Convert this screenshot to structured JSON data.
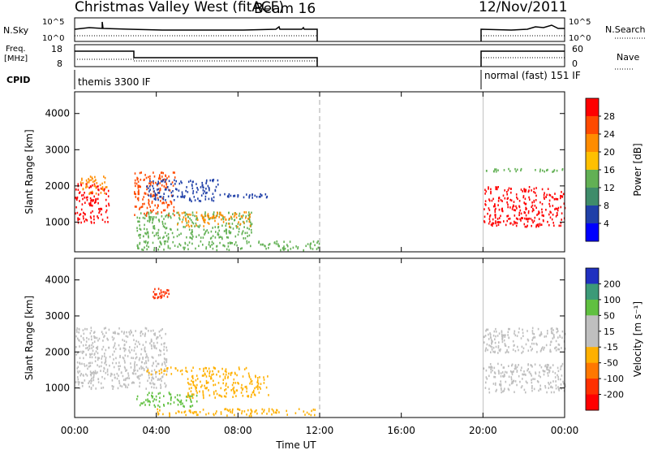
{
  "header": {
    "title": "Christmas Valley West (fitACF)",
    "beam": "Beam 16",
    "date": "12/Nov/2011"
  },
  "params": {
    "nsky_label": "N.Sky",
    "nsky_ticks": [
      "10^5",
      "10^0"
    ],
    "nsearch_label": "N.Search",
    "freq_label_1": "Freq.",
    "freq_label_2": "[MHz]",
    "freq_ticks": [
      "18",
      "8"
    ],
    "nave_label": "Nave",
    "nave_ticks": [
      "60",
      "0"
    ],
    "cpid_label": "CPID",
    "cpid_1": "themis 3300 IF",
    "cpid_2": "normal (fast) 151 IF"
  },
  "power_colorbar": {
    "label": "Power [dB]",
    "ticks": [
      "28",
      "24",
      "20",
      "16",
      "12",
      "8",
      "4"
    ],
    "colors": [
      "#ff0000",
      "#ff4a00",
      "#ff8c00",
      "#ffc000",
      "#62b054",
      "#3f8c6a",
      "#2040a8",
      "#0000ff"
    ]
  },
  "velocity_colorbar": {
    "label": "Velocity [m s⁻¹]",
    "ticks": [
      "200",
      "100",
      "50",
      "15",
      "-15",
      "-50",
      "-100",
      "-200"
    ],
    "colors": [
      "#2030c0",
      "#3c9a78",
      "#60c040",
      "#bfbfbf",
      "#bfbfbf",
      "#ffb000",
      "#ff7800",
      "#ff3000",
      "#ff0000"
    ]
  },
  "chart_data": [
    {
      "type": "heatmap",
      "quantity": "Power",
      "ylabel": "Slant Range [km]",
      "xlabel": "Time UT",
      "x_ticks": [
        "00:00",
        "04:00",
        "08:00",
        "12:00",
        "16:00",
        "20:00",
        "00:00"
      ],
      "y_ticks": [
        "1000",
        "2000",
        "3000",
        "4000"
      ],
      "xlim_hours": [
        0,
        24
      ],
      "ylim_km": [
        180,
        4600
      ],
      "data_gap_hours": [
        12,
        20
      ],
      "echo_regions": [
        {
          "t": [
            0.0,
            1.7
          ],
          "r": [
            1000,
            2100
          ],
          "color": "#ff0000"
        },
        {
          "t": [
            0.2,
            1.6
          ],
          "r": [
            1800,
            2300
          ],
          "color": "#ff8c00"
        },
        {
          "t": [
            2.9,
            4.9
          ],
          "r": [
            1200,
            2400
          ],
          "color": "#ff4a00"
        },
        {
          "t": [
            3.0,
            8.7
          ],
          "r": [
            550,
            1300
          ],
          "color": "#62b054"
        },
        {
          "t": [
            5.0,
            8.6
          ],
          "r": [
            900,
            1300
          ],
          "color": "#ff8c00"
        },
        {
          "t": [
            3.5,
            7.0
          ],
          "r": [
            1600,
            2200
          ],
          "color": "#2040a8"
        },
        {
          "t": [
            7.0,
            9.5
          ],
          "r": [
            1700,
            1800
          ],
          "color": "#2040a8"
        },
        {
          "t": [
            3.0,
            12.0
          ],
          "r": [
            250,
            500
          ],
          "color": "#62b054"
        },
        {
          "t": [
            20.0,
            24.0
          ],
          "r": [
            900,
            2000
          ],
          "color": "#ff0000"
        },
        {
          "t": [
            20.0,
            24.0
          ],
          "r": [
            2400,
            2500
          ],
          "color": "#62b054"
        }
      ]
    },
    {
      "type": "heatmap",
      "quantity": "Velocity",
      "ylabel": "Slant Range [km]",
      "xlabel": "Time UT",
      "x_ticks": [
        "00:00",
        "04:00",
        "08:00",
        "12:00",
        "16:00",
        "20:00",
        "00:00"
      ],
      "y_ticks": [
        "1000",
        "2000",
        "3000",
        "4000"
      ],
      "xlim_hours": [
        0,
        24
      ],
      "ylim_km": [
        180,
        4600
      ],
      "data_gap_hours": [
        12,
        20
      ],
      "echo_regions": [
        {
          "t": [
            0.0,
            4.5
          ],
          "r": [
            1000,
            2700
          ],
          "color": "#bfbfbf"
        },
        {
          "t": [
            3.0,
            6.0
          ],
          "r": [
            500,
            900
          ],
          "color": "#60c040"
        },
        {
          "t": [
            5.5,
            9.5
          ],
          "r": [
            750,
            1400
          ],
          "color": "#ffb000"
        },
        {
          "t": [
            3.5,
            8.5
          ],
          "r": [
            1400,
            1600
          ],
          "color": "#ffb000"
        },
        {
          "t": [
            4.0,
            12.0
          ],
          "r": [
            250,
            450
          ],
          "color": "#ffb000"
        },
        {
          "t": [
            3.8,
            4.6
          ],
          "r": [
            3500,
            3800
          ],
          "color": "#ff3000"
        },
        {
          "t": [
            20.0,
            24.0
          ],
          "r": [
            900,
            1700
          ],
          "color": "#bfbfbf"
        },
        {
          "t": [
            20.0,
            24.0
          ],
          "r": [
            2000,
            2700
          ],
          "color": "#bfbfbf"
        }
      ]
    }
  ]
}
